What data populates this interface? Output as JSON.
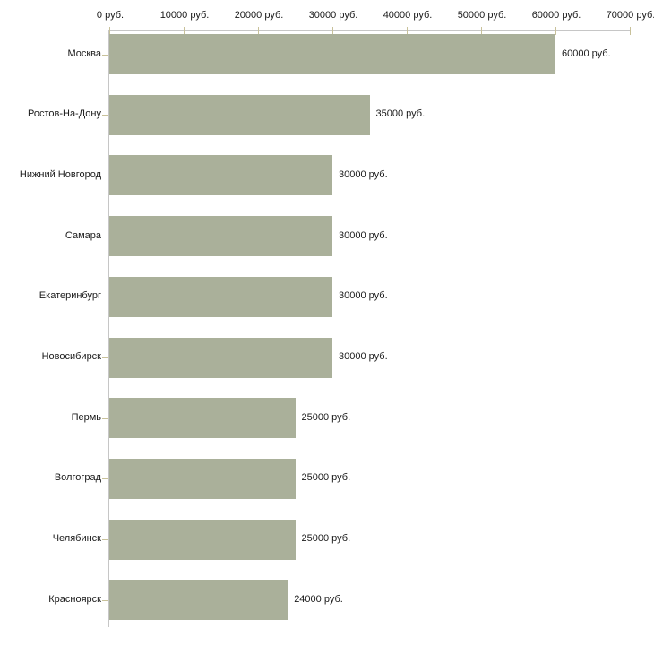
{
  "chart_data": {
    "type": "bar",
    "orientation": "horizontal",
    "title": "",
    "categories": [
      "Москва",
      "Ростов-На-Дону",
      "Нижний Новгород",
      "Самара",
      "Екатеринбург",
      "Новосибирск",
      "Пермь",
      "Волгоград",
      "Челябинск",
      "Красноярск"
    ],
    "values": [
      60000,
      35000,
      30000,
      30000,
      30000,
      30000,
      25000,
      25000,
      25000,
      24000
    ],
    "value_labels": [
      "60000 руб.",
      "35000 руб.",
      "30000 руб.",
      "30000 руб.",
      "30000 руб.",
      "30000 руб.",
      "25000 руб.",
      "25000 руб.",
      "25000 руб.",
      "24000 руб."
    ],
    "x_axis": {
      "position": "top",
      "min": 0,
      "max": 70000,
      "tick_interval": 10000,
      "tick_labels": [
        "0 руб.",
        "10000 руб.",
        "20000 руб.",
        "30000 руб.",
        "40000 руб.",
        "50000 руб.",
        "60000 руб.",
        "70000 руб."
      ]
    },
    "grid": false,
    "legend": false,
    "colors": {
      "bar": "#aab09a",
      "axis_line": "#c6c6c6",
      "tick": "#c8c19a",
      "text": "#1a1a1a",
      "background": "#ffffff"
    }
  }
}
